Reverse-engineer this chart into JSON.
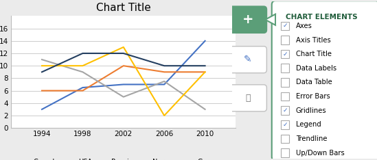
{
  "title": "Chart Title",
  "years": [
    1994,
    1998,
    2002,
    2006,
    2010
  ],
  "series": {
    "Canada": [
      3,
      6.5,
      7,
      7,
      14
    ],
    "USA": [
      6,
      6,
      10,
      9,
      9
    ],
    "Russia": [
      11,
      9,
      5,
      7.5,
      3
    ],
    "Norway": [
      10,
      10,
      13,
      2,
      9
    ],
    "Germany": [
      9,
      12,
      12,
      10,
      10
    ]
  },
  "colors": {
    "Canada": "#4472C4",
    "USA": "#ED7D31",
    "Russia": "#A5A5A5",
    "Norway": "#FFC000",
    "Germany": "#243F60"
  },
  "ylim": [
    0,
    18
  ],
  "yticks": [
    0,
    2,
    4,
    6,
    8,
    10,
    12,
    14,
    16
  ],
  "panel_bg": "#FFFFFF",
  "outer_bg": "#EBEBEB",
  "chart_elements": {
    "header": "CHART ELEMENTS",
    "items": [
      {
        "label": "Axes",
        "checked": true
      },
      {
        "label": "Axis Titles",
        "checked": false
      },
      {
        "label": "Chart Title",
        "checked": true
      },
      {
        "label": "Data Labels",
        "checked": false
      },
      {
        "label": "Data Table",
        "checked": false
      },
      {
        "label": "Error Bars",
        "checked": false
      },
      {
        "label": "Gridlines",
        "checked": true
      },
      {
        "label": "Legend",
        "checked": true
      },
      {
        "label": "Trendline",
        "checked": false
      },
      {
        "label": "Up/Down Bars",
        "checked": false
      }
    ]
  },
  "button_color": "#5B9E78",
  "panel_border_color": "#5B9E78",
  "header_color": "#1F5C3A",
  "check_color": "#4472C4"
}
